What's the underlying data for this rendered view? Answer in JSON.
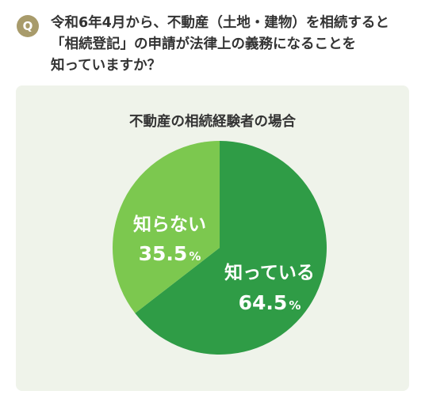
{
  "question": {
    "badge": "Q",
    "lines": [
      "令和6年4月から、不動産（土地・建物）を相続すると",
      "「相続登記」の申請が法律上の義務になることを",
      "知っていますか？"
    ]
  },
  "colors": {
    "dark_green": "#2f9c46",
    "light_green": "#7cc84f",
    "panel": "#eff3ea",
    "badge": "#a89b6b"
  },
  "chart_data": {
    "type": "pie",
    "title": "不動産の相続経験者の場合",
    "slices": [
      {
        "label": "知っている",
        "value": 64.5,
        "value_text": "64.5",
        "unit": "%",
        "color": "#2f9c46"
      },
      {
        "label": "知らない",
        "value": 35.5,
        "value_text": "35.5",
        "unit": "%",
        "color": "#7cc84f"
      }
    ]
  }
}
